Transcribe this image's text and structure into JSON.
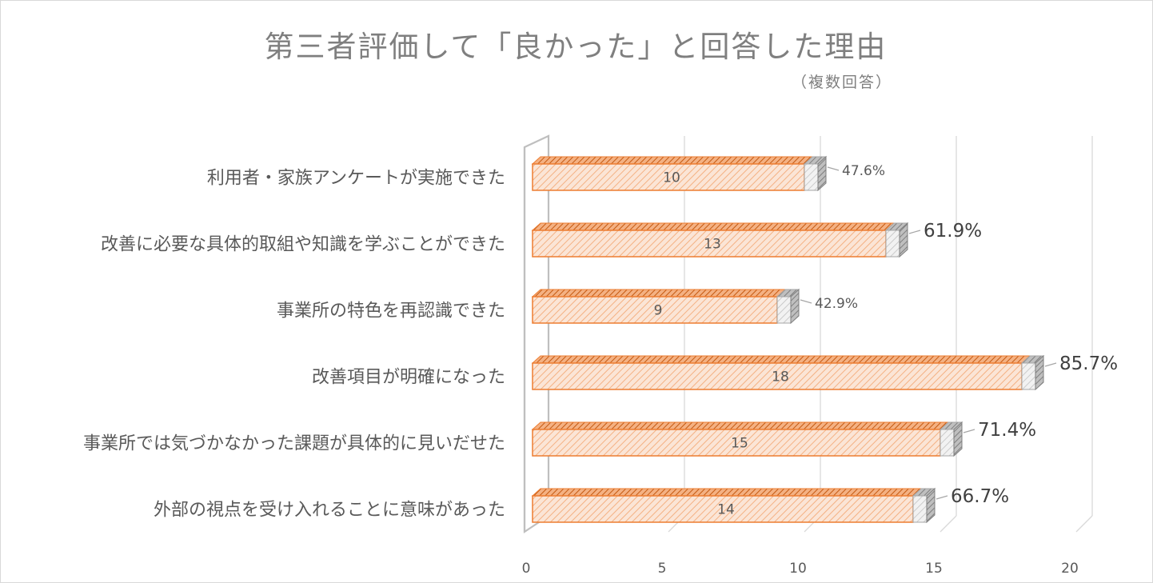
{
  "chart_data": {
    "type": "bar",
    "title": "第三者評価して「良かった」と回答した理由",
    "subtitle": "（複数回答）",
    "categories": [
      "利用者・家族アンケートが実施できた",
      "改善に必要な具体的取組や知識を学ぶことができた",
      "事業所の特色を再認識できた",
      "改善項目が明確になった",
      "事業所では気づかなかった課題が具体的に見いだせた",
      "外部の視点を受け入れることに意味があった"
    ],
    "series": [
      {
        "values": [
          10,
          13,
          9,
          18,
          15,
          14
        ]
      },
      {
        "values": [
          "47.6%",
          "61.9%",
          "42.9%",
          "85.7%",
          "71.4%",
          "66.7%"
        ]
      }
    ],
    "value_labels": [
      "10",
      "13",
      "9",
      "18",
      "15",
      "14"
    ],
    "percent_labels": [
      "47.6%",
      "61.9%",
      "42.9%",
      "85.7%",
      "71.4%",
      "66.7%"
    ],
    "percent_emphasis": [
      false,
      true,
      false,
      true,
      true,
      true
    ],
    "percent_values": [
      47.6,
      61.9,
      42.9,
      85.7,
      71.4,
      66.7
    ],
    "xlim": [
      0,
      20
    ],
    "xticks": [
      "0",
      "5",
      "10",
      "15",
      "20"
    ],
    "orientation": "horizontal",
    "style": "3d",
    "grid": true,
    "colors": {
      "bar_fill": "#fbe5d6",
      "bar_hatch": "#f4b183",
      "bar_edge": "#ed7d31",
      "bar_top": "#c55a11",
      "pct_fill": "#ededed",
      "pct_edge": "#a6a6a6",
      "pct_side": "#7f7f7f",
      "gridline": "#d9d9d9",
      "text": "#595959"
    }
  }
}
